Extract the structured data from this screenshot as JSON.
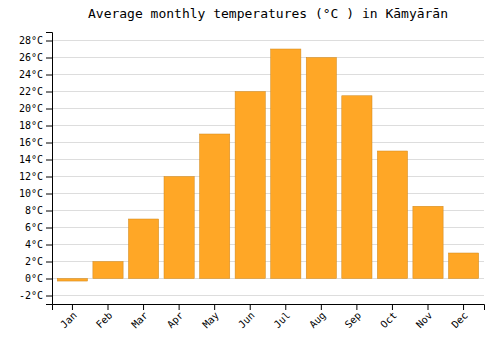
{
  "chart_data": {
    "type": "bar",
    "title": "Average monthly temperatures (°C ) in Kāmyārān",
    "categories": [
      "Jan",
      "Feb",
      "Mar",
      "Apr",
      "May",
      "Jun",
      "Jul",
      "Aug",
      "Sep",
      "Oct",
      "Nov",
      "Dec"
    ],
    "values": [
      -0.3,
      2.0,
      7.0,
      12.0,
      17.0,
      22.0,
      27.0,
      26.0,
      21.5,
      15.0,
      8.5,
      3.0
    ],
    "color": "#FFA726",
    "ylim": [
      -3,
      29
    ],
    "yticks": [
      {
        "value": -2,
        "label": "-2°C"
      },
      {
        "value": 0,
        "label": "0°C"
      },
      {
        "value": 2,
        "label": "2°C"
      },
      {
        "value": 4,
        "label": "4°C"
      },
      {
        "value": 6,
        "label": "6°C"
      },
      {
        "value": 8,
        "label": "8°C"
      },
      {
        "value": 10,
        "label": "10°C"
      },
      {
        "value": 12,
        "label": "12°C"
      },
      {
        "value": 14,
        "label": "14°C"
      },
      {
        "value": 16,
        "label": "16°C"
      },
      {
        "value": 18,
        "label": "18°C"
      },
      {
        "value": 20,
        "label": "20°C"
      },
      {
        "value": 22,
        "label": "22°C"
      },
      {
        "value": 24,
        "label": "24°C"
      },
      {
        "value": 26,
        "label": "26°C"
      },
      {
        "value": 28,
        "label": "28°C"
      }
    ],
    "grid": true
  }
}
